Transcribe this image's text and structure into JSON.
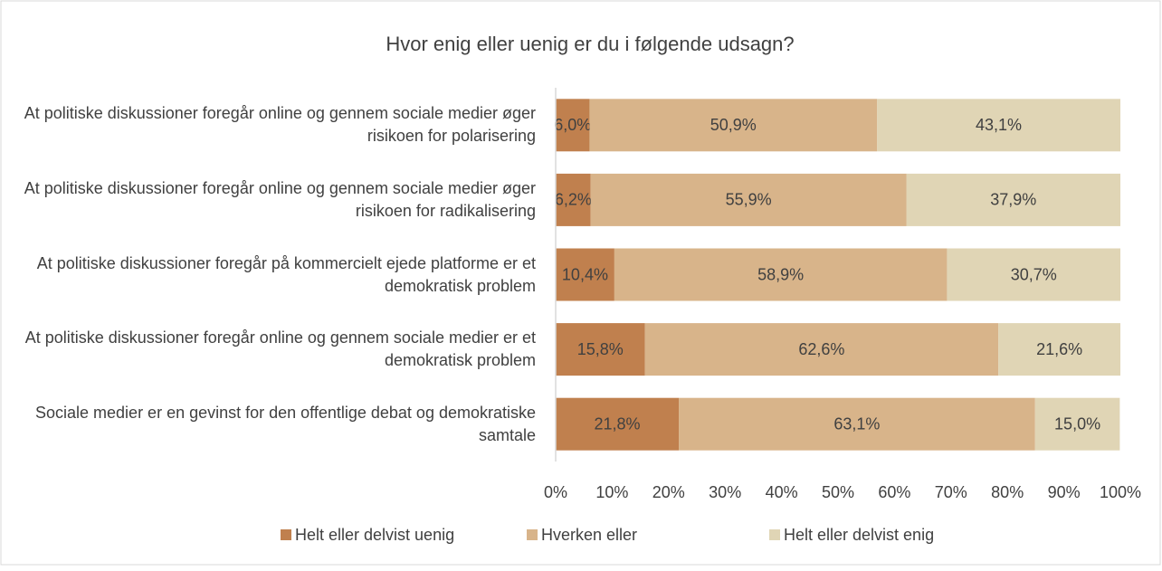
{
  "chart_data": {
    "type": "stacked-barh",
    "title": "Hvor enig eller uenig er du i følgende udsagn?",
    "categories": [
      "At politiske diskussioner foregår online og gennem sociale medier øger risikoen for polarisering",
      "At politiske diskussioner foregår online og gennem sociale medier øger risikoen for radikalisering",
      "At politiske diskussioner foregår på kommercielt ejede platforme er et demokratisk problem",
      "At politiske diskussioner foregår online og gennem sociale medier er et demokratisk problem",
      "Sociale medier er en gevinst for den offentlige debat og demokratiske samtale"
    ],
    "series": [
      {
        "name": "Helt eller delvist uenig",
        "color": "#c0804e",
        "values": [
          6.0,
          6.2,
          10.4,
          15.8,
          21.8
        ],
        "value_labels": [
          "6,0%",
          "6,2%",
          "10,4%",
          "15,8%",
          "21,8%"
        ]
      },
      {
        "name": "Hverken eller",
        "color": "#d8b48a",
        "values": [
          50.9,
          55.9,
          58.9,
          62.6,
          63.1
        ],
        "value_labels": [
          "50,9%",
          "55,9%",
          "58,9%",
          "62,6%",
          "63,1%"
        ]
      },
      {
        "name": "Helt eller delvist enig",
        "color": "#e0d5b5",
        "values": [
          43.1,
          37.9,
          30.7,
          21.6,
          15.0
        ],
        "value_labels": [
          "43,1%",
          "37,9%",
          "30,7%",
          "21,6%",
          "15,0%"
        ]
      }
    ],
    "xlim": [
      0,
      100
    ],
    "xticks": [
      {
        "value": 0,
        "label": "0%"
      },
      {
        "value": 10,
        "label": "10%"
      },
      {
        "value": 20,
        "label": "20%"
      },
      {
        "value": 30,
        "label": "30%"
      },
      {
        "value": 40,
        "label": "40%"
      },
      {
        "value": 50,
        "label": "50%"
      },
      {
        "value": 60,
        "label": "60%"
      },
      {
        "value": 70,
        "label": "70%"
      },
      {
        "value": 80,
        "label": "80%"
      },
      {
        "value": 90,
        "label": "90%"
      },
      {
        "value": 100,
        "label": "100%"
      }
    ],
    "legend": "bottom"
  }
}
